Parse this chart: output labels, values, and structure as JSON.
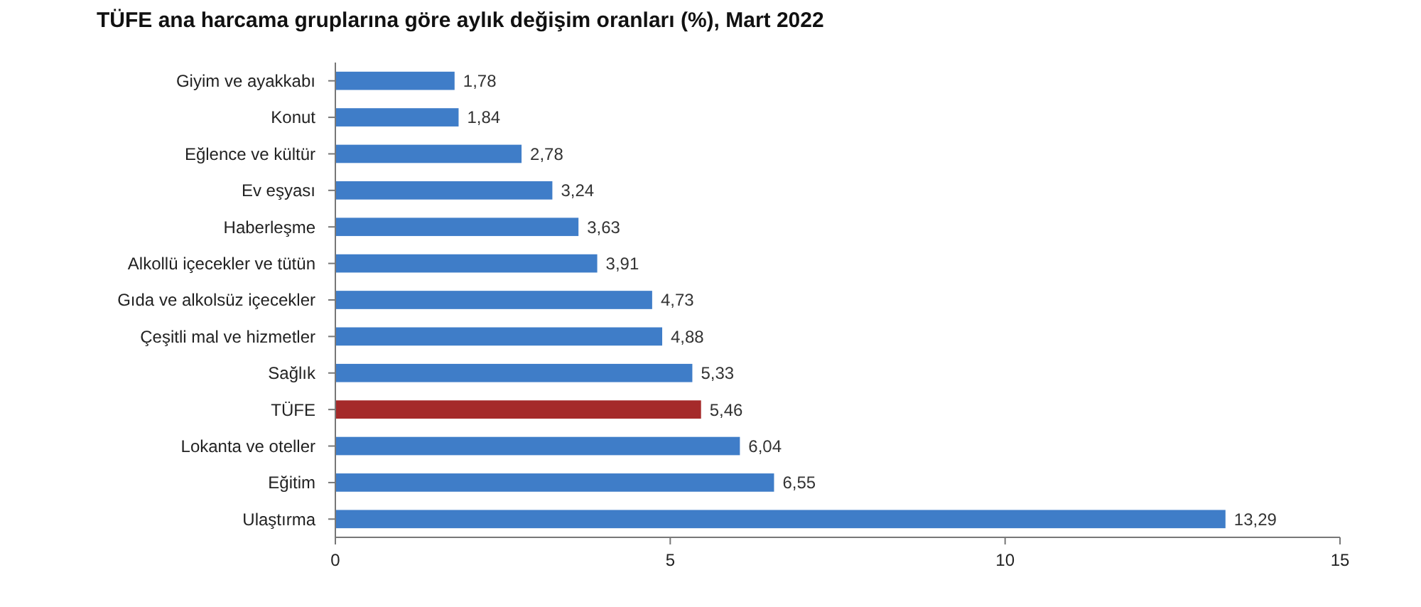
{
  "chart_data": {
    "type": "bar",
    "orientation": "horizontal",
    "title": "TÜFE ana harcama gruplarına göre aylık değişim oranları (%), Mart 2022",
    "categories": [
      "Giyim ve ayakkabı",
      "Konut",
      "Eğlence ve kültür",
      "Ev eşyası",
      "Haberleşme",
      "Alkollü içecekler ve tütün",
      "Gıda ve alkolsüz içecekler",
      "Çeşitli mal ve hizmetler",
      "Sağlık",
      "TÜFE",
      "Lokanta ve oteller",
      "Eğitim",
      "Ulaştırma"
    ],
    "values": [
      1.78,
      1.84,
      2.78,
      3.24,
      3.63,
      3.91,
      4.73,
      4.88,
      5.33,
      5.46,
      6.04,
      6.55,
      13.29
    ],
    "value_labels": [
      "1,78",
      "1,84",
      "2,78",
      "3,24",
      "3,63",
      "3,91",
      "4,73",
      "4,88",
      "5,33",
      "5,46",
      "6,04",
      "6,55",
      "13,29"
    ],
    "colors": [
      "#3f7dc8",
      "#3f7dc8",
      "#3f7dc8",
      "#3f7dc8",
      "#3f7dc8",
      "#3f7dc8",
      "#3f7dc8",
      "#3f7dc8",
      "#3f7dc8",
      "#a52a2a",
      "#3f7dc8",
      "#3f7dc8",
      "#3f7dc8"
    ],
    "xlim": [
      0,
      15
    ],
    "xticks": [
      0,
      5,
      10,
      15
    ]
  }
}
